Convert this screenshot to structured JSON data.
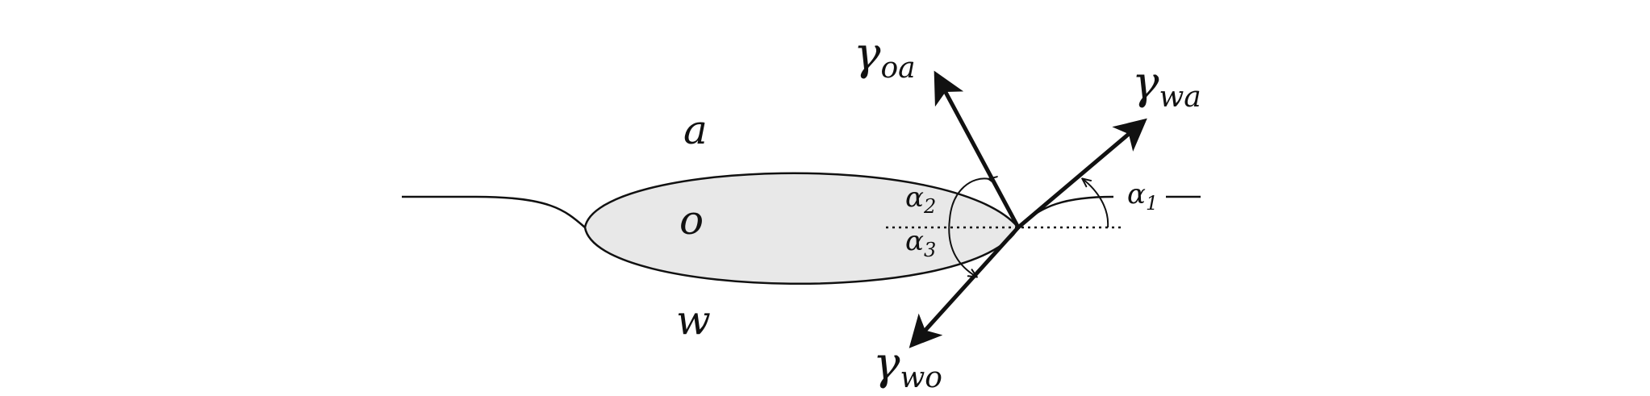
{
  "diagram": {
    "phases": {
      "air": "a",
      "oil": "o",
      "water": "w"
    },
    "tensions": {
      "oil_air": {
        "symbol": "γ",
        "subscript": "oa"
      },
      "water_air": {
        "symbol": "γ",
        "subscript": "wa"
      },
      "water_oil": {
        "symbol": "γ",
        "subscript": "wo"
      }
    },
    "angles": {
      "alpha1": {
        "symbol": "α",
        "subscript": "1"
      },
      "alpha2": {
        "symbol": "α",
        "subscript": "2"
      },
      "alpha3": {
        "symbol": "α",
        "subscript": "3"
      }
    },
    "colors": {
      "lens_fill": "#e8e8e8",
      "stroke": "#111111"
    }
  }
}
